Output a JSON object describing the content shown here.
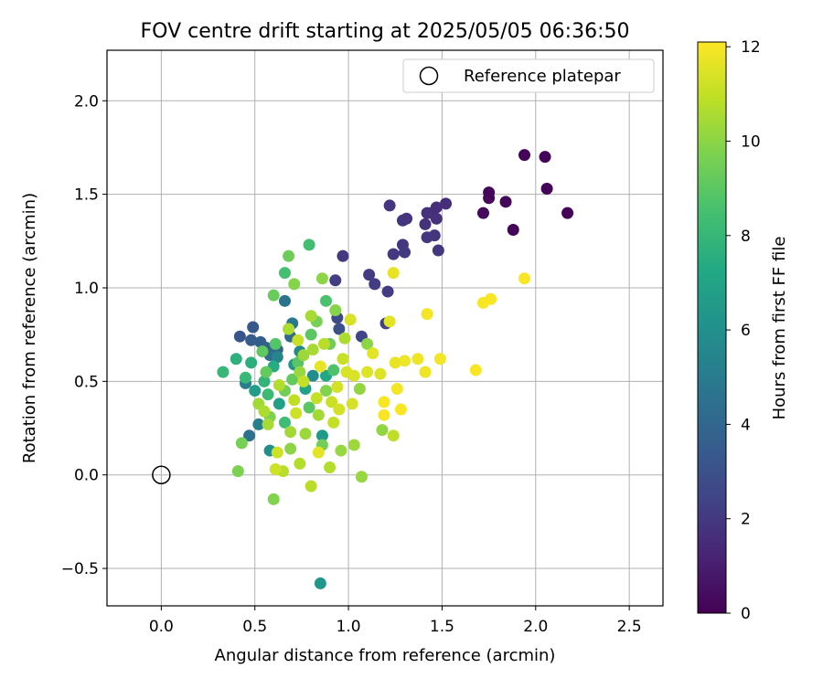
{
  "chart_data": {
    "type": "scatter",
    "title": "FOV centre drift starting at 2025/05/05 06:36:50",
    "xlabel": "Angular distance from reference (arcmin)",
    "ylabel": "Rotation from reference (arcmin)",
    "xlim": [
      -0.29,
      2.68
    ],
    "ylim": [
      -0.7,
      2.27
    ],
    "xticks": [
      "0.0",
      "0.5",
      "1.0",
      "1.5",
      "2.0",
      "2.5"
    ],
    "yticks": [
      "−0.5",
      "0.0",
      "0.5",
      "1.0",
      "1.5",
      "2.0"
    ],
    "grid": true,
    "legend": {
      "placement": "top-right",
      "entries": [
        "Reference platepar"
      ]
    },
    "reference_point": {
      "x": 0.0,
      "y": 0.0,
      "label": "Reference platepar"
    },
    "colorbar": {
      "label": "Hours from first FF file",
      "colormap": "viridis",
      "range": [
        0,
        12.1
      ],
      "ticks": [
        "0",
        "2",
        "4",
        "6",
        "8",
        "10",
        "12"
      ]
    },
    "points": [
      {
        "x": 1.94,
        "y": 1.71,
        "c": 0.1
      },
      {
        "x": 2.05,
        "y": 1.7,
        "c": 0.1
      },
      {
        "x": 2.06,
        "y": 1.53,
        "c": 0.1
      },
      {
        "x": 2.17,
        "y": 1.4,
        "c": 0.1
      },
      {
        "x": 1.88,
        "y": 1.31,
        "c": 0.1
      },
      {
        "x": 1.84,
        "y": 1.46,
        "c": 0.2
      },
      {
        "x": 1.75,
        "y": 1.51,
        "c": 0.2
      },
      {
        "x": 1.75,
        "y": 1.48,
        "c": 0.2
      },
      {
        "x": 1.72,
        "y": 1.4,
        "c": 0.3
      },
      {
        "x": 1.52,
        "y": 1.45,
        "c": 1.6
      },
      {
        "x": 1.47,
        "y": 1.43,
        "c": 1.6
      },
      {
        "x": 1.44,
        "y": 1.4,
        "c": 1.6
      },
      {
        "x": 1.42,
        "y": 1.4,
        "c": 1.7
      },
      {
        "x": 1.47,
        "y": 1.37,
        "c": 1.7
      },
      {
        "x": 1.41,
        "y": 1.34,
        "c": 1.7
      },
      {
        "x": 1.31,
        "y": 1.37,
        "c": 1.8
      },
      {
        "x": 1.29,
        "y": 1.36,
        "c": 1.8
      },
      {
        "x": 1.22,
        "y": 1.44,
        "c": 1.8
      },
      {
        "x": 1.46,
        "y": 1.28,
        "c": 1.8
      },
      {
        "x": 1.42,
        "y": 1.27,
        "c": 1.9
      },
      {
        "x": 1.48,
        "y": 1.2,
        "c": 1.9
      },
      {
        "x": 1.29,
        "y": 1.23,
        "c": 1.9
      },
      {
        "x": 1.24,
        "y": 1.18,
        "c": 2.0
      },
      {
        "x": 1.3,
        "y": 1.19,
        "c": 2.0
      },
      {
        "x": 0.97,
        "y": 1.17,
        "c": 2.0
      },
      {
        "x": 1.11,
        "y": 1.07,
        "c": 2.1
      },
      {
        "x": 1.14,
        "y": 1.02,
        "c": 2.1
      },
      {
        "x": 1.21,
        "y": 0.98,
        "c": 2.1
      },
      {
        "x": 0.93,
        "y": 1.04,
        "c": 2.2
      },
      {
        "x": 1.2,
        "y": 0.81,
        "c": 2.3
      },
      {
        "x": 1.07,
        "y": 0.74,
        "c": 2.5
      },
      {
        "x": 0.94,
        "y": 0.84,
        "c": 2.7
      },
      {
        "x": 0.95,
        "y": 0.78,
        "c": 3.0
      },
      {
        "x": 0.42,
        "y": 0.74,
        "c": 3.2
      },
      {
        "x": 0.49,
        "y": 0.79,
        "c": 3.3
      },
      {
        "x": 0.48,
        "y": 0.72,
        "c": 3.5
      },
      {
        "x": 0.53,
        "y": 0.71,
        "c": 3.6
      },
      {
        "x": 0.56,
        "y": 0.68,
        "c": 3.8
      },
      {
        "x": 0.62,
        "y": 0.67,
        "c": 3.9
      },
      {
        "x": 0.69,
        "y": 0.74,
        "c": 4.1
      },
      {
        "x": 0.58,
        "y": 0.64,
        "c": 4.3
      },
      {
        "x": 0.47,
        "y": 0.21,
        "c": 4.5
      },
      {
        "x": 0.66,
        "y": 0.93,
        "c": 4.6
      },
      {
        "x": 0.7,
        "y": 0.81,
        "c": 4.8
      },
      {
        "x": 0.45,
        "y": 0.49,
        "c": 5.0
      },
      {
        "x": 0.52,
        "y": 0.27,
        "c": 5.2
      },
      {
        "x": 0.62,
        "y": 0.63,
        "c": 5.4
      },
      {
        "x": 0.74,
        "y": 0.66,
        "c": 5.6
      },
      {
        "x": 0.81,
        "y": 0.53,
        "c": 5.8
      },
      {
        "x": 0.58,
        "y": 0.13,
        "c": 6.0
      },
      {
        "x": 0.71,
        "y": 0.59,
        "c": 6.2
      },
      {
        "x": 0.85,
        "y": -0.58,
        "c": 6.3
      },
      {
        "x": 0.86,
        "y": 0.21,
        "c": 6.5
      },
      {
        "x": 0.5,
        "y": 0.45,
        "c": 6.7
      },
      {
        "x": 0.63,
        "y": 0.38,
        "c": 6.9
      },
      {
        "x": 0.77,
        "y": 0.46,
        "c": 7.0
      },
      {
        "x": 0.88,
        "y": 0.53,
        "c": 7.2
      },
      {
        "x": 0.6,
        "y": 0.58,
        "c": 7.4
      },
      {
        "x": 0.48,
        "y": 0.6,
        "c": 7.6
      },
      {
        "x": 0.4,
        "y": 0.62,
        "c": 7.7
      },
      {
        "x": 0.55,
        "y": 0.5,
        "c": 7.9
      },
      {
        "x": 0.33,
        "y": 0.55,
        "c": 8.0
      },
      {
        "x": 0.45,
        "y": 0.52,
        "c": 8.1
      },
      {
        "x": 0.57,
        "y": 0.43,
        "c": 8.2
      },
      {
        "x": 0.66,
        "y": 0.28,
        "c": 8.3
      },
      {
        "x": 0.79,
        "y": 1.23,
        "c": 8.4
      },
      {
        "x": 0.66,
        "y": 1.08,
        "c": 8.5
      },
      {
        "x": 0.88,
        "y": 0.93,
        "c": 8.6
      },
      {
        "x": 0.92,
        "y": 0.56,
        "c": 8.7
      },
      {
        "x": 0.61,
        "y": 0.7,
        "c": 8.8
      },
      {
        "x": 0.73,
        "y": 0.6,
        "c": 8.9
      },
      {
        "x": 0.8,
        "y": 0.75,
        "c": 9.0
      },
      {
        "x": 0.54,
        "y": 0.66,
        "c": 9.1
      },
      {
        "x": 0.7,
        "y": 0.51,
        "c": 9.2
      },
      {
        "x": 0.6,
        "y": 0.96,
        "c": 9.3
      },
      {
        "x": 0.68,
        "y": 1.17,
        "c": 9.4
      },
      {
        "x": 0.86,
        "y": 0.16,
        "c": 9.5
      },
      {
        "x": 0.43,
        "y": 0.17,
        "c": 9.6
      },
      {
        "x": 0.41,
        "y": 0.02,
        "c": 9.7
      },
      {
        "x": 0.6,
        "y": -0.13,
        "c": 9.8
      },
      {
        "x": 0.71,
        "y": 1.02,
        "c": 9.9
      },
      {
        "x": 0.93,
        "y": 0.88,
        "c": 9.9
      },
      {
        "x": 0.86,
        "y": 1.05,
        "c": 10.0
      },
      {
        "x": 1.1,
        "y": 0.7,
        "c": 10.0
      },
      {
        "x": 1.06,
        "y": 0.46,
        "c": 10.1
      },
      {
        "x": 1.18,
        "y": 0.24,
        "c": 10.1
      },
      {
        "x": 1.07,
        "y": -0.01,
        "c": 10.2
      },
      {
        "x": 0.96,
        "y": 0.13,
        "c": 10.2
      },
      {
        "x": 1.03,
        "y": 0.16,
        "c": 10.3
      },
      {
        "x": 0.76,
        "y": 0.64,
        "c": 10.3
      },
      {
        "x": 0.84,
        "y": 0.32,
        "c": 10.4
      },
      {
        "x": 0.69,
        "y": 0.23,
        "c": 10.4
      },
      {
        "x": 0.57,
        "y": 0.27,
        "c": 10.5
      },
      {
        "x": 0.8,
        "y": 0.85,
        "c": 10.5
      },
      {
        "x": 0.68,
        "y": 0.78,
        "c": 10.6
      },
      {
        "x": 0.55,
        "y": 0.34,
        "c": 10.6
      },
      {
        "x": 0.74,
        "y": 0.06,
        "c": 10.7
      },
      {
        "x": 0.9,
        "y": 0.04,
        "c": 10.7
      },
      {
        "x": 0.65,
        "y": 0.02,
        "c": 10.8
      },
      {
        "x": 0.8,
        "y": -0.06,
        "c": 10.8
      },
      {
        "x": 1.24,
        "y": 0.21,
        "c": 10.9
      },
      {
        "x": 0.76,
        "y": 0.5,
        "c": 11.0
      },
      {
        "x": 0.83,
        "y": 0.41,
        "c": 11.0
      },
      {
        "x": 0.97,
        "y": 0.62,
        "c": 11.1
      },
      {
        "x": 0.91,
        "y": 0.39,
        "c": 11.1
      },
      {
        "x": 0.62,
        "y": 0.12,
        "c": 11.2
      },
      {
        "x": 0.72,
        "y": 0.33,
        "c": 11.2
      },
      {
        "x": 0.94,
        "y": 0.47,
        "c": 11.3
      },
      {
        "x": 1.02,
        "y": 0.38,
        "c": 11.3
      },
      {
        "x": 1.01,
        "y": 0.83,
        "c": 11.4
      },
      {
        "x": 0.99,
        "y": 0.55,
        "c": 11.4
      },
      {
        "x": 1.1,
        "y": 0.55,
        "c": 11.5
      },
      {
        "x": 1.17,
        "y": 0.54,
        "c": 11.5
      },
      {
        "x": 1.13,
        "y": 0.65,
        "c": 11.6
      },
      {
        "x": 1.22,
        "y": 0.82,
        "c": 11.6
      },
      {
        "x": 1.24,
        "y": 1.08,
        "c": 11.7
      },
      {
        "x": 1.25,
        "y": 0.6,
        "c": 11.7
      },
      {
        "x": 1.3,
        "y": 0.61,
        "c": 11.8
      },
      {
        "x": 1.37,
        "y": 0.62,
        "c": 11.8
      },
      {
        "x": 1.41,
        "y": 0.55,
        "c": 11.8
      },
      {
        "x": 1.42,
        "y": 0.86,
        "c": 11.9
      },
      {
        "x": 1.49,
        "y": 0.62,
        "c": 11.9
      },
      {
        "x": 1.26,
        "y": 0.46,
        "c": 11.9
      },
      {
        "x": 1.19,
        "y": 0.39,
        "c": 12.0
      },
      {
        "x": 1.28,
        "y": 0.35,
        "c": 12.0
      },
      {
        "x": 1.19,
        "y": 0.32,
        "c": 12.0
      },
      {
        "x": 1.68,
        "y": 0.56,
        "c": 12.0
      },
      {
        "x": 1.72,
        "y": 0.92,
        "c": 12.0
      },
      {
        "x": 1.76,
        "y": 0.94,
        "c": 12.0
      },
      {
        "x": 1.94,
        "y": 1.05,
        "c": 12.0
      },
      {
        "x": 0.84,
        "y": 0.12,
        "c": 11.6
      },
      {
        "x": 0.61,
        "y": 0.03,
        "c": 11.2
      },
      {
        "x": 0.92,
        "y": 0.28,
        "c": 11.0
      },
      {
        "x": 0.87,
        "y": 0.7,
        "c": 10.8
      },
      {
        "x": 0.81,
        "y": 0.67,
        "c": 10.5
      },
      {
        "x": 0.74,
        "y": 0.55,
        "c": 10.2
      },
      {
        "x": 0.88,
        "y": 0.45,
        "c": 9.8
      },
      {
        "x": 0.66,
        "y": 0.45,
        "c": 9.5
      },
      {
        "x": 0.56,
        "y": 0.55,
        "c": 9.2
      },
      {
        "x": 0.79,
        "y": 0.36,
        "c": 9.0
      },
      {
        "x": 0.71,
        "y": 0.4,
        "c": 10.9
      },
      {
        "x": 0.95,
        "y": 0.35,
        "c": 11.3
      },
      {
        "x": 0.85,
        "y": 0.58,
        "c": 11.7
      },
      {
        "x": 0.63,
        "y": 0.48,
        "c": 10.7
      },
      {
        "x": 0.77,
        "y": 0.22,
        "c": 10.3
      },
      {
        "x": 0.58,
        "y": 0.31,
        "c": 9.7
      },
      {
        "x": 0.9,
        "y": 0.7,
        "c": 9.4
      },
      {
        "x": 0.98,
        "y": 0.73,
        "c": 10.6
      },
      {
        "x": 1.03,
        "y": 0.53,
        "c": 11.4
      },
      {
        "x": 0.69,
        "y": 0.14,
        "c": 10.0
      },
      {
        "x": 0.83,
        "y": 0.82,
        "c": 9.6
      },
      {
        "x": 0.73,
        "y": 0.72,
        "c": 11.1
      },
      {
        "x": 0.52,
        "y": 0.38,
        "c": 10.4
      }
    ]
  }
}
